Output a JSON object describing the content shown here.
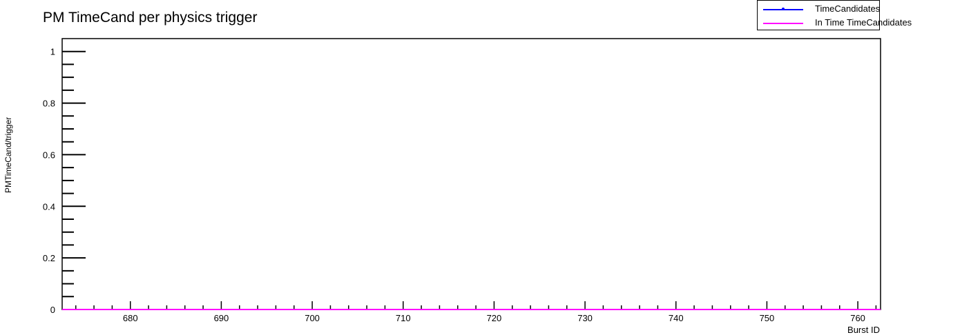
{
  "chart_data": {
    "type": "line",
    "title": "PM TimeCand per physics trigger",
    "xlabel": "Burst ID",
    "ylabel": "PMTimeCand/trigger",
    "xlim": [
      672.5,
      762.5
    ],
    "ylim": [
      0,
      1.05
    ],
    "x_ticks": [
      680,
      690,
      700,
      710,
      720,
      730,
      740,
      750,
      760
    ],
    "y_ticks": [
      0,
      0.2,
      0.4,
      0.6,
      0.8,
      1
    ],
    "y_tick_labels": [
      "0",
      "0.2",
      "0.4",
      "0.6",
      "0.8",
      "1"
    ],
    "legend_position": "top-right",
    "series": [
      {
        "name": "TimeCandidates",
        "color": "#0000ff",
        "values": [
          0,
          0
        ]
      },
      {
        "name": "In Time TimeCandidates",
        "color": "#ff00ff",
        "values": [
          0,
          0
        ]
      }
    ],
    "x": [
      672.5,
      762.5
    ]
  }
}
